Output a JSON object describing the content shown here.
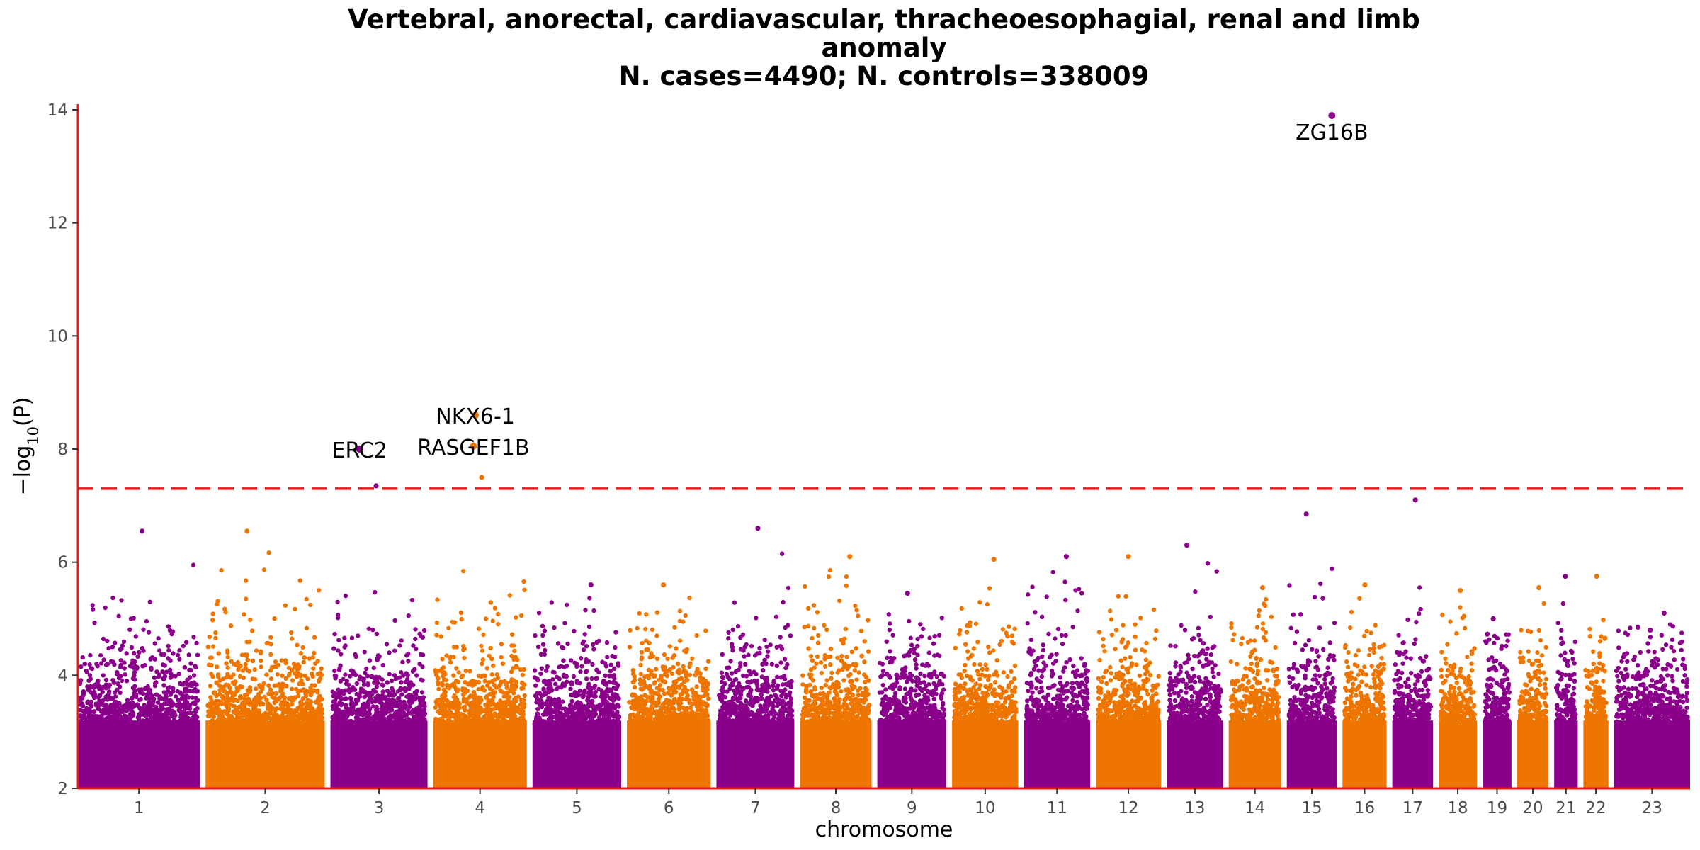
{
  "chart_data": {
    "type": "scatter",
    "title_lines": [
      "Vertebral, anorectal, cardiavascular, thracheoesophagial, renal and limb",
      "anomaly",
      "N. cases=4490; N. controls=338009"
    ],
    "xlabel": "chromosome",
    "ylabel_main": "−log",
    "ylabel_sub": "10",
    "ylabel_arg": "(P)",
    "ylim": [
      2,
      14.1
    ],
    "yticks": [
      2,
      4,
      6,
      8,
      10,
      12,
      14
    ],
    "significance_threshold": 7.3,
    "grid": false,
    "legend": "none",
    "colors": {
      "odd": "#8b008b",
      "even": "#ee7600",
      "axis": "#e41a1c",
      "threshold": "#e41a1c"
    },
    "chromosomes": [
      {
        "label": "1",
        "size": 249,
        "peak": 6.55
      },
      {
        "label": "2",
        "size": 243,
        "peak": 6.55
      },
      {
        "label": "3",
        "size": 198,
        "peak": 7.35
      },
      {
        "label": "4",
        "size": 191,
        "peak": 7.5
      },
      {
        "label": "5",
        "size": 181,
        "peak": 5.6
      },
      {
        "label": "6",
        "size": 171,
        "peak": 5.6
      },
      {
        "label": "7",
        "size": 159,
        "peak": 6.6
      },
      {
        "label": "8",
        "size": 146,
        "peak": 6.1
      },
      {
        "label": "9",
        "size": 141,
        "peak": 5.45
      },
      {
        "label": "10",
        "size": 135,
        "peak": 6.05
      },
      {
        "label": "11",
        "size": 135,
        "peak": 6.1
      },
      {
        "label": "12",
        "size": 133,
        "peak": 6.1
      },
      {
        "label": "13",
        "size": 115,
        "peak": 6.3
      },
      {
        "label": "14",
        "size": 107,
        "peak": 5.55
      },
      {
        "label": "15",
        "size": 102,
        "peak": 6.85
      },
      {
        "label": "16",
        "size": 90,
        "peak": 5.6
      },
      {
        "label": "17",
        "size": 83,
        "peak": 7.1
      },
      {
        "label": "18",
        "size": 78,
        "peak": 5.5
      },
      {
        "label": "19",
        "size": 59,
        "peak": 5.0
      },
      {
        "label": "20",
        "size": 64,
        "peak": 5.55
      },
      {
        "label": "21",
        "size": 48,
        "peak": 5.75
      },
      {
        "label": "22",
        "size": 51,
        "peak": 5.75
      },
      {
        "label": "23",
        "size": 155,
        "peak": 5.1
      }
    ],
    "annotations": [
      {
        "gene": "ZG16B",
        "chromosome": "15",
        "position": 0.9,
        "y": 13.9,
        "label_side": "below"
      },
      {
        "gene": "NKX6-1",
        "chromosome": "4",
        "position": 0.45,
        "y": 8.6,
        "label_side": "above"
      },
      {
        "gene": "RASGEF1B",
        "chromosome": "4",
        "position": 0.43,
        "y": 8.05,
        "label_side": "above"
      },
      {
        "gene": "ERC2",
        "chromosome": "3",
        "position": 0.3,
        "y": 8.0,
        "label_side": "above"
      }
    ]
  }
}
